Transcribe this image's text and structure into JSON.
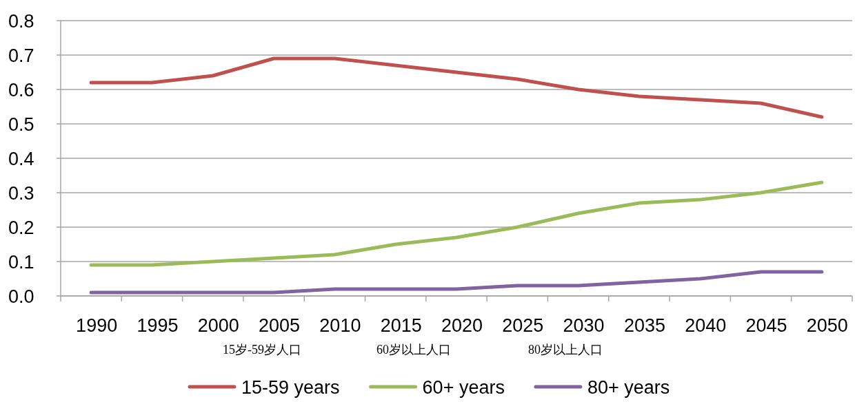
{
  "chart_data": {
    "type": "line",
    "categories": [
      "1990",
      "1995",
      "2000",
      "2005",
      "2010",
      "2015",
      "2020",
      "2025",
      "2030",
      "2035",
      "2040",
      "2045",
      "2050"
    ],
    "series": [
      {
        "name": "15-59 years",
        "color": "#c0504d",
        "values": [
          0.62,
          0.62,
          0.64,
          0.69,
          0.69,
          0.67,
          0.65,
          0.63,
          0.6,
          0.58,
          0.57,
          0.56,
          0.52
        ]
      },
      {
        "name": "60+ years",
        "color": "#9bbb59",
        "values": [
          0.09,
          0.09,
          0.1,
          0.11,
          0.12,
          0.15,
          0.17,
          0.2,
          0.24,
          0.27,
          0.28,
          0.3,
          0.33
        ]
      },
      {
        "name": "80+ years",
        "color": "#8064a2",
        "values": [
          0.01,
          0.01,
          0.01,
          0.01,
          0.02,
          0.02,
          0.02,
          0.03,
          0.03,
          0.04,
          0.05,
          0.07,
          0.07
        ]
      }
    ],
    "ylim": [
      0,
      0.8
    ],
    "yticks": [
      {
        "value": 0,
        "label": "0.0"
      },
      {
        "value": 0.1,
        "label": "0.1"
      },
      {
        "value": 0.2,
        "label": "0.2"
      },
      {
        "value": 0.3,
        "label": "0.3"
      },
      {
        "value": 0.4,
        "label": "0.4"
      },
      {
        "value": 0.5,
        "label": "0.5"
      },
      {
        "value": 0.6,
        "label": "0.6"
      },
      {
        "value": 0.7,
        "label": "0.7"
      },
      {
        "value": 0.8,
        "label": "0.8"
      }
    ],
    "grid": "y",
    "legend": "bottom",
    "annotations": [
      "15岁-59岁人口",
      "60岁以上人口",
      "80岁以上人口"
    ]
  }
}
